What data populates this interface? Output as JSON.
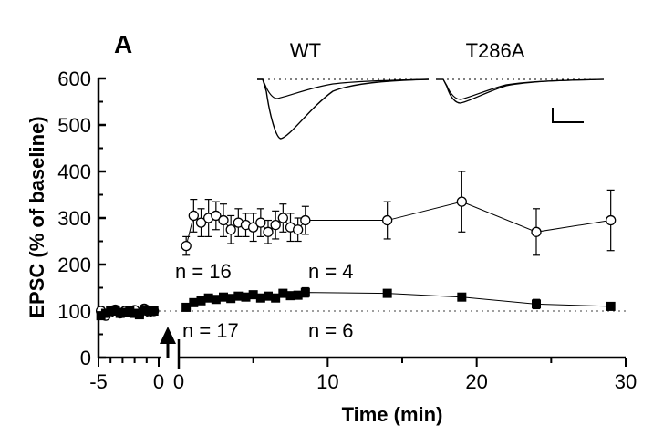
{
  "panel_label": "A",
  "chart_data": {
    "type": "scatter",
    "ylabel": "EPSC (% of baseline)",
    "xlabel": "Time (min)",
    "x_ticks_left": [
      "-5",
      "0"
    ],
    "x_ticks_right": [
      "0",
      "10",
      "20",
      "30"
    ],
    "y_ticks": [
      "0",
      "100",
      "200",
      "300",
      "400",
      "500",
      "600"
    ],
    "xlim_baseline": [
      -5,
      0
    ],
    "xlim_post": [
      0,
      30
    ],
    "ylim": [
      0,
      600
    ],
    "baseline_ref": 100,
    "annotations": {
      "n_wt_early": "n = 16",
      "n_wt_late": "n = 4",
      "n_t286a_early": "n = 17",
      "n_t286a_late": "n = 6"
    },
    "inset_labels": {
      "wt": "WT",
      "t286a": "T286A"
    },
    "series": [
      {
        "marker": "open-circle",
        "baseline_x": [
          -4.8,
          -4.4,
          -4.0,
          -3.6,
          -3.2,
          -2.8,
          -2.4,
          -2.0,
          -1.6,
          -1.2,
          -0.8,
          -0.4
        ],
        "baseline_y": [
          100,
          90,
          98,
          103,
          95,
          100,
          97,
          102,
          94,
          105,
          98,
          100
        ],
        "baseline_err": [
          8,
          7,
          6,
          8,
          7,
          6,
          7,
          8,
          6,
          7,
          6,
          6
        ],
        "x": [
          0.5,
          1.0,
          1.5,
          2.0,
          2.5,
          3.0,
          3.5,
          4.0,
          4.5,
          5.0,
          5.5,
          6.0,
          6.5,
          7.0,
          7.5,
          8.0,
          8.5,
          14.0,
          19.0,
          24.0,
          29.0
        ],
        "y": [
          240,
          305,
          290,
          300,
          305,
          295,
          275,
          290,
          285,
          280,
          290,
          270,
          285,
          300,
          280,
          275,
          295,
          295,
          335,
          270,
          295
        ],
        "err": [
          20,
          35,
          30,
          40,
          30,
          35,
          30,
          30,
          25,
          30,
          30,
          25,
          30,
          30,
          30,
          25,
          30,
          40,
          65,
          50,
          65
        ]
      },
      {
        "marker": "filled-square",
        "baseline_x": [
          -4.8,
          -4.4,
          -4.0,
          -3.6,
          -3.2,
          -2.8,
          -2.4,
          -2.0,
          -1.6,
          -1.2,
          -0.8,
          -0.4
        ],
        "baseline_y": [
          90,
          95,
          100,
          100,
          95,
          97,
          100,
          95,
          92,
          103,
          100,
          100
        ],
        "baseline_err": [
          5,
          5,
          5,
          5,
          5,
          5,
          5,
          5,
          5,
          5,
          5,
          5
        ],
        "x": [
          0.5,
          1.0,
          1.5,
          2.0,
          2.5,
          3.0,
          3.5,
          4.0,
          4.5,
          5.0,
          5.5,
          6.0,
          6.5,
          7.0,
          7.5,
          8.0,
          8.5,
          14.0,
          19.0,
          24.0,
          29.0
        ],
        "y": [
          108,
          118,
          122,
          128,
          125,
          130,
          127,
          132,
          130,
          135,
          128,
          132,
          128,
          138,
          133,
          134,
          140,
          138,
          130,
          115,
          110
        ],
        "err": [
          5,
          6,
          6,
          6,
          6,
          6,
          6,
          6,
          6,
          6,
          6,
          6,
          6,
          8,
          8,
          8,
          10,
          8,
          8,
          10,
          8
        ]
      }
    ]
  }
}
